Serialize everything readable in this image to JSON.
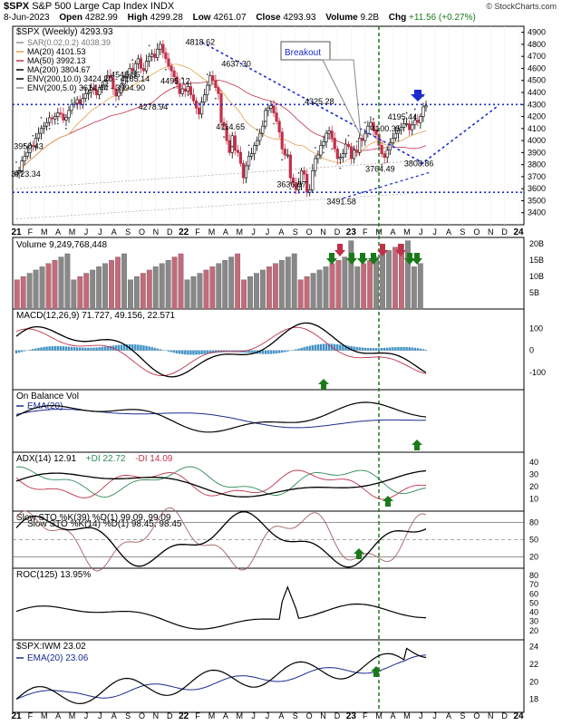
{
  "header": {
    "symbol": "$SPX",
    "name": "S&P 500 Large Cap Index",
    "exchange": "INDX",
    "date": "8-Jun-2023",
    "open_label": "Open",
    "open": "4282.99",
    "high_label": "High",
    "high": "4299.28",
    "low_label": "Low",
    "low": "4261.07",
    "close_label": "Close",
    "close": "4293.93",
    "volume_label": "Volume",
    "volume": "9.2B",
    "chg_label": "Chg",
    "chg": "+11.56 (+0.27%)",
    "chg_color": "#1a7a1a",
    "watermark": "© StockCharts.com"
  },
  "colors": {
    "up": "#000000",
    "down": "#c0304a",
    "ma20": "#e2a04a",
    "ma50": "#c0304a",
    "ma200": "#000000",
    "env": "#a0a0a0",
    "trend": "#1a2bd0",
    "vline": "#1e7a1e",
    "vol_up": "#888888",
    "vol_down": "#c46a7a",
    "macd_hist": "#3f91c4",
    "ema": "#1a2b90",
    "dip": "#2e8b57"
  },
  "chart_data": [
    {
      "type": "candlestick",
      "title": "$SPX (Weekly) 4293.93",
      "legend": [
        {
          "label": "SAR(0.02,0.2) 4038.39",
          "color": "#909090"
        },
        {
          "label": "MA(20) 4101.53",
          "color": "#e2a04a"
        },
        {
          "label": "MA(50) 3992.13",
          "color": "#c0304a"
        },
        {
          "label": "MA(200) 3804.67",
          "color": "#000000"
        },
        {
          "label": "ENV(200,10.0) 3424.20 - 4185.14",
          "color": "#000000"
        },
        {
          "label": "ENV(200,5.0) 3614.44 - 3994.90",
          "color": "#909090"
        }
      ],
      "ylim": [
        3300,
        4950
      ],
      "yticks": [
        3400,
        3500,
        3600,
        3700,
        3800,
        3900,
        4000,
        4100,
        4200,
        4300,
        4400,
        4500,
        4600,
        4700,
        4800,
        4900
      ],
      "series_close": [
        3730,
        3750,
        3830,
        3870,
        3900,
        3960,
        3950,
        4020,
        4060,
        4100,
        4120,
        4150,
        4190,
        4180,
        4200,
        4230,
        4220,
        4170,
        4190,
        4250,
        4300,
        4310,
        4340,
        4300,
        4350,
        4390,
        4400,
        4440,
        4420,
        4380,
        4440,
        4460,
        4500,
        4540,
        4520,
        4430,
        4370,
        4400,
        4470,
        4520,
        4550,
        4600,
        4580,
        4640,
        4680,
        4600,
        4580,
        4660,
        4700,
        4720,
        4690,
        4760,
        4800,
        4730,
        4680,
        4620,
        4580,
        4530,
        4470,
        4390,
        4430,
        4410,
        4450,
        4380,
        4330,
        4270,
        4220,
        4320,
        4380,
        4460,
        4540,
        4500,
        4440,
        4390,
        4150,
        4120,
        4000,
        3900,
        4040,
        3920,
        3900,
        3810,
        3690,
        3790,
        3870,
        3890,
        3960,
        4000,
        4060,
        4120,
        4250,
        4270,
        4290,
        4230,
        4160,
        4070,
        3930,
        3880,
        3880,
        3690,
        3650,
        3590,
        3640,
        3750,
        3720,
        3570,
        3590,
        3750,
        3850,
        3880,
        3960,
        3990,
        4060,
        4080,
        4020,
        3930,
        3850,
        3860,
        3890,
        3970,
        3950,
        3850,
        3920,
        3900,
        4020,
        4000,
        4060,
        4120,
        4150,
        4090,
        4050,
        3960,
        3890,
        3860,
        3920,
        3980,
        4020,
        4060,
        4090,
        4110,
        4140,
        4140,
        4090,
        4130,
        4170,
        4150,
        4200,
        4280,
        4290
      ],
      "annotations": [
        {
          "text": "4818.62",
          "x": 67,
          "y": 4818.62
        },
        {
          "text": "4637.30",
          "x": 80,
          "y": 4637.3
        },
        {
          "text": "4545.85",
          "x": 40,
          "y": 4545.85
        },
        {
          "text": "4495.12",
          "x": 58,
          "y": 4495.12
        },
        {
          "text": "4325.28",
          "x": 110,
          "y": 4325.28
        },
        {
          "text": "4278.94",
          "x": 50,
          "y": 4278.94
        },
        {
          "text": "4195.44",
          "x": 140,
          "y": 4195.44
        },
        {
          "text": "4100.35",
          "x": 134,
          "y": 4100.35
        },
        {
          "text": "4114.65",
          "x": 78,
          "y": 4114.65
        },
        {
          "text": "3950.43",
          "x": 5,
          "y": 3950.43
        },
        {
          "text": "3723.34",
          "x": 4,
          "y": 3723.34
        },
        {
          "text": "3764.49",
          "x": 132,
          "y": 3764.49
        },
        {
          "text": "3808.86",
          "x": 146,
          "y": 3808.86
        },
        {
          "text": "3636.87",
          "x": 100,
          "y": 3636.87
        },
        {
          "text": "3491.58",
          "x": 118,
          "y": 3491.58
        }
      ],
      "callout": "Breakout",
      "support_levels": [
        4300,
        3570
      ],
      "x_axis_labels": [
        "21",
        "F",
        "M",
        "A",
        "M",
        "J",
        "J",
        "A",
        "S",
        "O",
        "N",
        "D",
        "22",
        "F",
        "M",
        "A",
        "M",
        "J",
        "J",
        "A",
        "S",
        "O",
        "N",
        "D",
        "23",
        "F",
        "M",
        "A",
        "M",
        "J",
        "J",
        "A",
        "S",
        "O",
        "N",
        "D",
        "24"
      ]
    },
    {
      "type": "bar",
      "title": "Volume 9,249,768,448",
      "yticks_labels": [
        "5B",
        "10B",
        "15B",
        "20B"
      ],
      "ylim": [
        0,
        22
      ]
    },
    {
      "type": "line",
      "title": "MACD(12,26,9) 71.727, 49.156, 22.571",
      "ylim": [
        -180,
        190
      ],
      "yticks": [
        -100,
        0,
        100
      ]
    },
    {
      "type": "line",
      "title": "On Balance Vol",
      "legend": [
        {
          "label": "EMA(20)",
          "color": "#1a2b90"
        }
      ]
    },
    {
      "type": "line",
      "title": "ADX(14) 12.91",
      "legend": [
        {
          "label": "+DI 22.72",
          "color": "#2e8b57"
        },
        {
          "label": "-DI 14.09",
          "color": "#c0304a"
        }
      ],
      "ylim": [
        0,
        48
      ],
      "yticks": [
        10,
        20,
        30,
        40
      ]
    },
    {
      "type": "line",
      "title": "Slow STO %K(39) %D(1) 99.09, 99.09",
      "legend": [
        {
          "label": "Slow STO %K(14) %D(1) 98.45, 98.45",
          "color": "#a06060"
        }
      ],
      "ylim": [
        0,
        100
      ],
      "yticks": [
        20,
        50,
        80
      ]
    },
    {
      "type": "line",
      "title": "ROC(125) 13.95%",
      "ylim": [
        10,
        88
      ],
      "yticks": [
        20,
        30,
        40,
        50,
        60,
        70,
        80
      ]
    },
    {
      "type": "line",
      "title": "$SPX:IWM 23.02",
      "legend": [
        {
          "label": "EMA(20) 23.06",
          "color": "#1a2b90"
        }
      ],
      "ylim": [
        16.5,
        24.8
      ],
      "yticks": [
        18,
        20,
        22,
        24
      ]
    }
  ]
}
